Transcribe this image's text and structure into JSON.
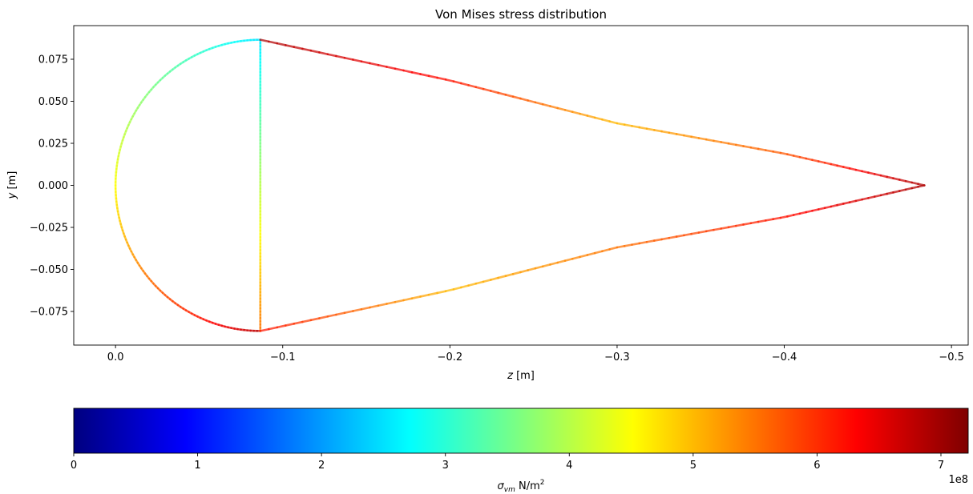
{
  "chart_data": {
    "type": "line",
    "title": "Von Mises stress distribution",
    "xlabel_var": "z",
    "xlabel_unit": " [m]",
    "ylabel_var": "y",
    "ylabel_unit": " [m]",
    "xlim": [
      0.025,
      -0.51
    ],
    "ylim": [
      -0.095,
      0.095
    ],
    "x_ticks": [
      0.0,
      -0.1,
      -0.2,
      -0.3,
      -0.4,
      -0.5
    ],
    "x_tick_labels": [
      "0.0",
      "−0.1",
      "−0.2",
      "−0.3",
      "−0.4",
      "−0.5"
    ],
    "y_ticks": [
      0.075,
      0.05,
      0.025,
      0.0,
      -0.025,
      -0.05,
      -0.075
    ],
    "y_tick_labels": [
      "0.075",
      "0.050",
      "0.025",
      "0.000",
      "−0.025",
      "−0.050",
      "−0.075"
    ],
    "geometry": {
      "circle_center": [
        -0.0866,
        0.0
      ],
      "circle_radius": 0.0866,
      "tip": [
        -0.4838,
        0.0
      ]
    },
    "series": [
      {
        "type": "arc",
        "points": [
          [
            -0.0866,
            0.0866
          ],
          [
            0.0,
            0.0
          ],
          [
            -0.0866,
            -0.0866
          ]
        ],
        "stress": [
          250000000.0,
          450000000.0,
          680000000.0
        ]
      },
      {
        "type": "web",
        "points": [
          [
            -0.0866,
            0.0866
          ],
          [
            -0.0866,
            -0.0866
          ]
        ],
        "stress": [
          250000000.0,
          550000000.0
        ]
      },
      {
        "type": "panel_upper",
        "points": [
          [
            -0.0866,
            0.0866
          ],
          [
            -0.2,
            0.0624
          ],
          [
            -0.3,
            0.0369
          ],
          [
            -0.4,
            0.0189
          ],
          [
            -0.4838,
            0.0
          ]
        ],
        "stress": [
          690000000.0,
          620000000.0,
          500000000.0,
          570000000.0,
          690000000.0
        ]
      },
      {
        "type": "panel_lower",
        "points": [
          [
            -0.0866,
            -0.0866
          ],
          [
            -0.2,
            -0.0624
          ],
          [
            -0.3,
            -0.0369
          ],
          [
            -0.4,
            -0.0189
          ],
          [
            -0.4838,
            0.0
          ]
        ],
        "stress": [
          620000000.0,
          500000000.0,
          550000000.0,
          620000000.0,
          690000000.0
        ]
      }
    ],
    "colorbar": {
      "label_var": "σ",
      "label_sub": "vm",
      "label_unit": " N/m",
      "label_sup": "2",
      "vmin": 0,
      "vmax": 7.22,
      "ticks": [
        0,
        1,
        2,
        3,
        4,
        5,
        6,
        7
      ],
      "tick_labels": [
        "0",
        "1",
        "2",
        "3",
        "4",
        "5",
        "6",
        "7"
      ],
      "offset_text": "1e8",
      "colormap": "jet",
      "colormap_stops": [
        "#00007f",
        "#0000ff",
        "#007fff",
        "#00ffff",
        "#7fff7f",
        "#ffff00",
        "#ff7f00",
        "#ff0000",
        "#7f0000"
      ],
      "value_scale": 100000000.0
    },
    "line_alpha": 0.72,
    "grid": false,
    "legend": "none"
  }
}
